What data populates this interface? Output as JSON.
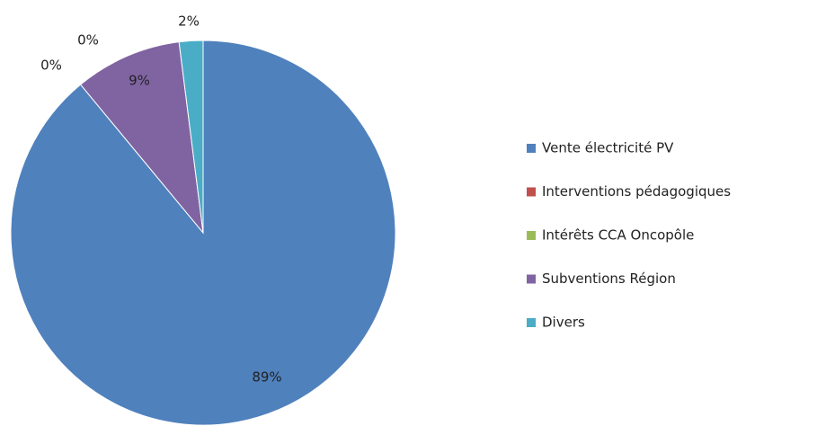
{
  "chart_data": {
    "type": "pie",
    "categories": [
      "Vente électricité PV",
      "Interventions pédagogiques",
      "Intérêts CCA Oncopôle",
      "Subventions Région",
      "Divers"
    ],
    "values": [
      89,
      0,
      0,
      9,
      2
    ],
    "value_labels": [
      "89%",
      "0%",
      "0%",
      "9%",
      "2%"
    ],
    "colors": [
      "#4f81bd",
      "#c0504d",
      "#9bbb59",
      "#8064a2",
      "#4bacc6"
    ],
    "legend": "right"
  }
}
